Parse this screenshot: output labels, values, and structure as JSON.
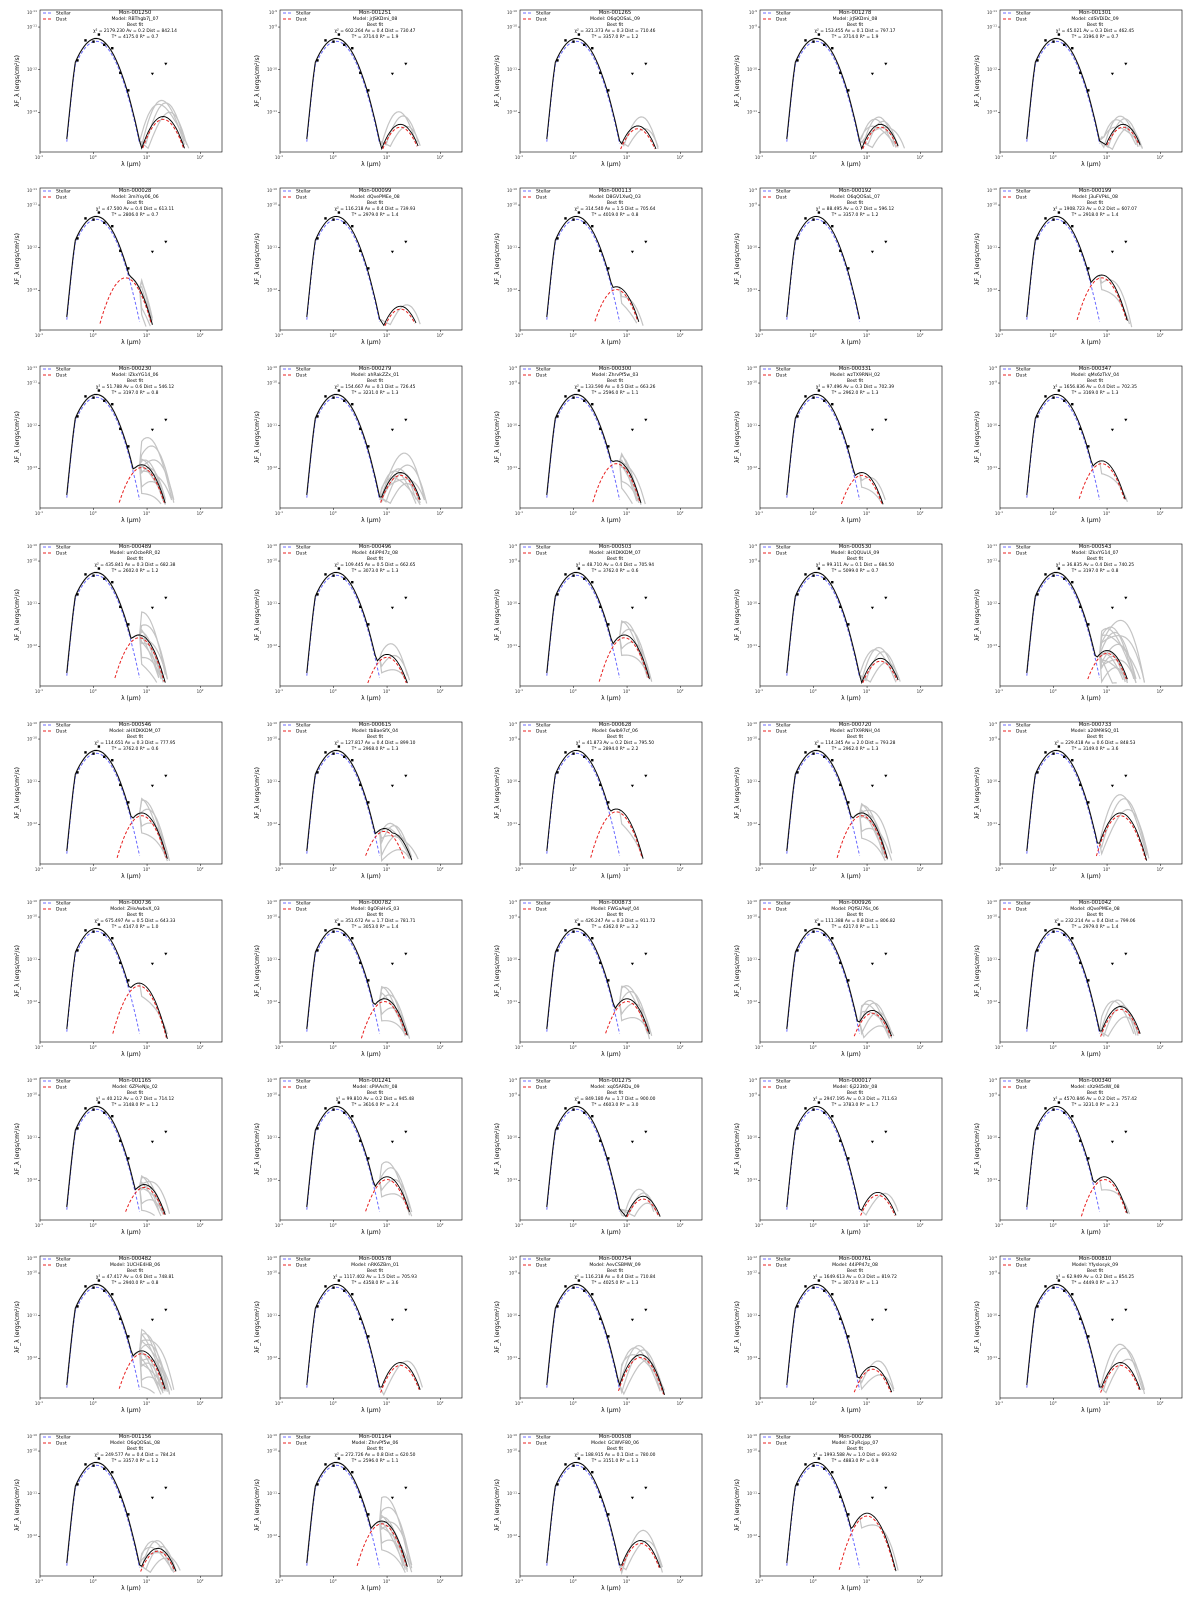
{
  "legend": {
    "stellar": "Stellar",
    "dust": "Dust"
  },
  "labels": {
    "best_fit": "Best fit",
    "model_prefix": "Model:",
    "xlabel": "λ (μm)",
    "ylabel": "λF_λ (ergs/cm²/s)"
  },
  "x_ticks": [
    "10^-1",
    "10^0",
    "10^1",
    "10^2"
  ],
  "colors": {
    "stellar": "#6b6bff",
    "dust": "#e8201f",
    "best": "#000000",
    "alt_models": "#c4c4c4",
    "fit_overlap": "#1c1c5e",
    "dust_overlap": "#8b0d0d"
  },
  "chart_data": [
    {
      "type": "line",
      "id": "Mon-001250",
      "model": "RBThgb7j_07",
      "chi2": "2179.230",
      "av": "0.2",
      "dist": "842.14",
      "teff": "4175.0",
      "rstar": "0.7",
      "ytick_top": "10^-11",
      "peak": 0.55,
      "dust": 0.2,
      "dustpk": 1.3,
      "alts": 4,
      "tail": "up"
    },
    {
      "type": "line",
      "id": "Mon-001251",
      "model": "jrJSKDmi_08",
      "chi2": "602.264",
      "av": "0.4",
      "dist": "730.47",
      "teff": "3714.0",
      "rstar": "1.9",
      "ytick_top": "10^-9",
      "peak": 0.62,
      "dust": 0.1,
      "dustpk": 1.25,
      "alts": 3,
      "tail": "flat"
    },
    {
      "type": "line",
      "id": "Mon-001265",
      "model": "O6qQOSaL_09",
      "chi2": "321.373",
      "av": "0.3",
      "dist": "710.46",
      "teff": "3357.0",
      "rstar": "1.2",
      "ytick_top": "10^-10",
      "peak": 0.6,
      "dust": 0.08,
      "dustpk": 1.2,
      "alts": 2,
      "tail": "flat"
    },
    {
      "type": "line",
      "id": "Mon-001278",
      "model": "jrJSKDmi_08",
      "chi2": "153.455",
      "av": "0.1",
      "dist": "797.17",
      "teff": "3714.0",
      "rstar": "1.9",
      "ytick_top": "10^-9",
      "peak": 0.6,
      "dust": 0.1,
      "dustpk": 1.25,
      "alts": 6,
      "tail": "flat"
    },
    {
      "type": "line",
      "id": "Mon-001301",
      "model": "cdSVDiDc_09",
      "chi2": "45.021",
      "av": "0.3",
      "dist": "462.45",
      "teff": "3196.0",
      "rstar": "0.7",
      "ytick_top": "10^-11",
      "peak": 0.6,
      "dust": 0.1,
      "dustpk": 1.3,
      "alts": 5,
      "tail": "flat"
    },
    {
      "type": "line",
      "id": "Mon-000028",
      "model": "3miYsy06_06",
      "chi2": "47.500",
      "av": "0.4",
      "dist": "613.11",
      "teff": "2806.0",
      "rstar": "0.7",
      "ytick_top": "10^-11",
      "peak": 0.55,
      "dust": 0.45,
      "dustpk": 0.6,
      "alts": 6,
      "tail": "down"
    },
    {
      "type": "line",
      "id": "Mon-000099",
      "model": "dQvePMEe_08",
      "chi2": "116.218",
      "av": "0.4",
      "dist": "739.93",
      "teff": "2979.0",
      "rstar": "1.4",
      "ytick_top": "10^-10",
      "peak": 0.58,
      "dust": 0.05,
      "dustpk": 1.25,
      "alts": 1,
      "tail": "flat"
    },
    {
      "type": "line",
      "id": "Mon-000113",
      "model": "D8GV1XwQ_03",
      "chi2": "314.540",
      "av": "1.5",
      "dist": "705.64",
      "teff": "4019.0",
      "rstar": "0.8",
      "ytick_top": "10^-10",
      "peak": 0.55,
      "dust": 0.3,
      "dustpk": 0.8,
      "alts": 2,
      "tail": "flat"
    },
    {
      "type": "line",
      "id": "Mon-000192",
      "model": "O6qQOSaL_07",
      "chi2": "88.495",
      "av": "0.7",
      "dist": "596.12",
      "teff": "3357.0",
      "rstar": "1.2",
      "ytick_top": "10^-9",
      "peak": 0.55,
      "dust": 0.0,
      "dustpk": 1.0,
      "alts": 1,
      "tail": "flat"
    },
    {
      "type": "line",
      "id": "Mon-000199",
      "model": "J3uFVPkL_08",
      "chi2": "1908.723",
      "av": "0.2",
      "dist": "607.07",
      "teff": "2918.0",
      "rstar": "1.4",
      "ytick_top": "10^-10",
      "peak": 0.6,
      "dust": 0.45,
      "dustpk": 0.9,
      "alts": 2,
      "tail": "flat"
    },
    {
      "type": "line",
      "id": "Mon-000230",
      "model": "lZkxYG14_06",
      "chi2": "51.788",
      "av": "0.6",
      "dist": "546.12",
      "teff": "3197.0",
      "rstar": "0.8",
      "ytick_top": "10^-11",
      "peak": 0.55,
      "dust": 0.3,
      "dustpk": 0.9,
      "alts": 10,
      "tail": "up"
    },
    {
      "type": "line",
      "id": "Mon-000279",
      "model": "ahRakZZx_01",
      "chi2": "154.667",
      "av": "0.1",
      "dist": "726.45",
      "teff": "3231.0",
      "rstar": "1.3",
      "ytick_top": "10^-10",
      "peak": 0.58,
      "dust": 0.2,
      "dustpk": 1.25,
      "alts": 8,
      "tail": "flat"
    },
    {
      "type": "line",
      "id": "Mon-000300",
      "model": "ZhrvPf5w_03",
      "chi2": "133.590",
      "av": "0.5",
      "dist": "663.26",
      "teff": "2596.0",
      "rstar": "1.1",
      "ytick_top": "10^-9",
      "peak": 0.55,
      "dust": 0.35,
      "dustpk": 0.8,
      "alts": 8,
      "tail": "down"
    },
    {
      "type": "line",
      "id": "Mon-000331",
      "model": "wzTX9RNH_02",
      "chi2": "97.496",
      "av": "0.3",
      "dist": "702.39",
      "teff": "2962.0",
      "rstar": "1.3",
      "ytick_top": "10^-10",
      "peak": 0.58,
      "dust": 0.2,
      "dustpk": 0.9,
      "alts": 2,
      "tail": "flat"
    },
    {
      "type": "line",
      "id": "Mon-000347",
      "model": "qMs6zTkV_04",
      "chi2": "1656.836",
      "av": "0.4",
      "dist": "702.35",
      "teff": "3169.0",
      "rstar": "1.3",
      "ytick_top": "10^-9",
      "peak": 0.55,
      "dust": 0.35,
      "dustpk": 0.9,
      "alts": 1,
      "tail": "flat"
    },
    {
      "type": "line",
      "id": "Mon-000489",
      "model": "umOcbeRR_02",
      "chi2": "435.841",
      "av": "0.3",
      "dist": "682.38",
      "teff": "2602.0",
      "rstar": "1.2",
      "ytick_top": "10^-10",
      "peak": 0.55,
      "dust": 0.4,
      "dustpk": 0.85,
      "alts": 10,
      "tail": "down"
    },
    {
      "type": "line",
      "id": "Mon-000496",
      "model": "44iPP47z_08",
      "chi2": "109.445",
      "av": "0.5",
      "dist": "662.65",
      "teff": "3073.0",
      "rstar": "1.3",
      "ytick_top": "10^-10",
      "peak": 0.62,
      "dust": 0.15,
      "dustpk": 1.0,
      "alts": 3,
      "tail": "flat"
    },
    {
      "type": "line",
      "id": "Mon-000503",
      "model": "aHXDKKDM_07",
      "chi2": "48.710",
      "av": "0.4",
      "dist": "705.94",
      "teff": "3762.0",
      "rstar": "0.6",
      "ytick_top": "10^-9",
      "peak": 0.5,
      "dust": 0.4,
      "dustpk": 0.95,
      "alts": 5,
      "tail": "flat"
    },
    {
      "type": "line",
      "id": "Mon-000530",
      "model": "8cQQUuUi_09",
      "chi2": "99.311",
      "av": "0.1",
      "dist": "684.50",
      "teff": "5099.0",
      "rstar": "0.7",
      "ytick_top": "10^-9",
      "peak": 0.6,
      "dust": 0.1,
      "dustpk": 1.25,
      "alts": 4,
      "tail": "flat"
    },
    {
      "type": "line",
      "id": "Mon-000543",
      "model": "lZkxYG14_07",
      "chi2": "36.835",
      "av": "0.4",
      "dist": "740.25",
      "teff": "3197.0",
      "rstar": "0.8",
      "ytick_top": "10^-11",
      "peak": 0.55,
      "dust": 0.2,
      "dustpk": 1.0,
      "alts": 14,
      "tail": "up"
    },
    {
      "type": "line",
      "id": "Mon-000546",
      "model": "aHXDKKDM_07",
      "chi2": "114.651",
      "av": "0.3",
      "dist": "777.95",
      "teff": "3762.0",
      "rstar": "0.6",
      "ytick_top": "10^-10",
      "peak": 0.5,
      "dust": 0.4,
      "dustpk": 0.9,
      "alts": 5,
      "tail": "flat"
    },
    {
      "type": "line",
      "id": "Mon-000615",
      "model": "tbBaeSfX_04",
      "chi2": "127.817",
      "av": "0.4",
      "dist": "899.10",
      "teff": "2968.0",
      "rstar": "1.3",
      "ytick_top": "10^-10",
      "peak": 0.55,
      "dust": 0.2,
      "dustpk": 0.95,
      "alts": 6,
      "tail": "steep"
    },
    {
      "type": "line",
      "id": "Mon-000628",
      "model": "6wlb97cf_06",
      "chi2": "41.873",
      "av": "0.2",
      "dist": "795.50",
      "teff": "2894.0",
      "rstar": "2.2",
      "ytick_top": "10^-9",
      "peak": 0.58,
      "dust": 0.45,
      "dustpk": 0.8,
      "alts": 1,
      "tail": "flat"
    },
    {
      "type": "line",
      "id": "Mon-000720",
      "model": "wzTX9RNH_04",
      "chi2": "114.345",
      "av": "2.0",
      "dist": "793.28",
      "teff": "2962.0",
      "rstar": "1.3",
      "ytick_top": "10^-10",
      "peak": 0.55,
      "dust": 0.4,
      "dustpk": 0.9,
      "alts": 8,
      "tail": "flat"
    },
    {
      "type": "line",
      "id": "Mon-000733",
      "model": "a20M9ISQ_01",
      "chi2": "229.418",
      "av": "0.6",
      "dist": "848.53",
      "teff": "3149.0",
      "rstar": "3.6",
      "ytick_top": "10^-9",
      "peak": 0.55,
      "dust": 0.4,
      "dustpk": 1.25,
      "alts": 3,
      "tail": "up"
    },
    {
      "type": "line",
      "id": "Mon-000736",
      "model": "ZHsAwbvX_03",
      "chi2": "675.497",
      "av": "0.5",
      "dist": "643.33",
      "teff": "4147.0",
      "rstar": "1.0",
      "ytick_top": "10^-10",
      "peak": 0.55,
      "dust": 0.5,
      "dustpk": 0.85,
      "alts": 1,
      "tail": "flat"
    },
    {
      "type": "line",
      "id": "Mon-000782",
      "model": "0gOFaHvS_03",
      "chi2": "351.672",
      "av": "1.7",
      "dist": "781.71",
      "teff": "3053.0",
      "rstar": "1.4",
      "ytick_top": "10^-10",
      "peak": 0.55,
      "dust": 0.3,
      "dustpk": 0.95,
      "alts": 6,
      "tail": "flat"
    },
    {
      "type": "line",
      "id": "Mon-000873",
      "model": "FWGaAwjf_04",
      "chi2": "426.247",
      "av": "0.3",
      "dist": "911.72",
      "teff": "4362.0",
      "rstar": "3.2",
      "ytick_top": "10^-9",
      "peak": 0.5,
      "dust": 0.3,
      "dustpk": 1.0,
      "alts": 5,
      "tail": "flat"
    },
    {
      "type": "line",
      "id": "Mon-000926",
      "model": "PQfSU76s_06",
      "chi2": "111.388",
      "av": "0.8",
      "dist": "806.82",
      "teff": "4217.0",
      "rstar": "1.1",
      "ytick_top": "10^-10",
      "peak": 0.55,
      "dust": 0.15,
      "dustpk": 1.1,
      "alts": 6,
      "tail": "flat"
    },
    {
      "type": "line",
      "id": "Mon-001042",
      "model": "dQvePMEe_08",
      "chi2": "232.214",
      "av": "0.4",
      "dist": "799.06",
      "teff": "2979.0",
      "rstar": "1.4",
      "ytick_top": "10^-10",
      "peak": 0.55,
      "dust": 0.2,
      "dustpk": 1.25,
      "alts": 4,
      "tail": "down"
    },
    {
      "type": "line",
      "id": "Mon-001165",
      "model": "6ZPieNJo_02",
      "chi2": "40.212",
      "av": "0.7",
      "dist": "714.12",
      "teff": "3148.0",
      "rstar": "1.2",
      "ytick_top": "10^-10",
      "peak": 0.55,
      "dust": 0.2,
      "dustpk": 0.95,
      "alts": 8,
      "tail": "down"
    },
    {
      "type": "line",
      "id": "Mon-001241",
      "model": "sPlAAsYr_08",
      "chi2": "99.810",
      "av": "0.2",
      "dist": "945.48",
      "teff": "3616.0",
      "rstar": "2.4",
      "ytick_top": "10^-10",
      "peak": 0.55,
      "dust": 0.3,
      "dustpk": 1.0,
      "alts": 4,
      "tail": "flat"
    },
    {
      "type": "line",
      "id": "Mon-001275",
      "model": "xq05ARDu_09",
      "chi2": "849.180",
      "av": "1.7",
      "dist": "900.00",
      "teff": "4603.0",
      "rstar": "3.0",
      "ytick_top": "10^-9",
      "peak": 0.55,
      "dust": 0.05,
      "dustpk": 1.3,
      "alts": 3,
      "tail": "down"
    },
    {
      "type": "line",
      "id": "Mon-000017",
      "model": "6j223t0r_08",
      "chi2": "2947.195",
      "av": "0.3",
      "dist": "711.63",
      "teff": "3783.0",
      "rstar": "1.7",
      "ytick_top": "10^-9",
      "peak": 0.6,
      "dust": 0.1,
      "dustpk": 1.2,
      "alts": 1,
      "tail": "flat"
    },
    {
      "type": "line",
      "id": "Mon-000340",
      "model": "sXz945dW_08",
      "chi2": "4570.846",
      "av": "0.2",
      "dist": "757.42",
      "teff": "3231.0",
      "rstar": "2.3",
      "ytick_top": "10^-9",
      "peak": 0.58,
      "dust": 0.3,
      "dustpk": 0.95,
      "alts": 1,
      "tail": "flat"
    },
    {
      "type": "line",
      "id": "Mon-000482",
      "model": "1UCHE4HB_06",
      "chi2": "47.417",
      "av": "0.6",
      "dist": "748.81",
      "teff": "2940.0",
      "rstar": "0.8",
      "ytick_top": "10^-10",
      "peak": 0.55,
      "dust": 0.35,
      "dustpk": 0.9,
      "alts": 14,
      "tail": "flat"
    },
    {
      "type": "line",
      "id": "Mon-000578",
      "model": "nRK6ZBm_01",
      "chi2": "1117.402",
      "av": "1.5",
      "dist": "705.93",
      "teff": "4358.0",
      "rstar": "3.6",
      "ytick_top": "10^-10",
      "peak": 0.6,
      "dust": 0.2,
      "dustpk": 1.25,
      "alts": 1,
      "tail": "flat"
    },
    {
      "type": "line",
      "id": "Mon-000754",
      "model": "AevCSBMW_09",
      "chi2": "116.218",
      "av": "0.4",
      "dist": "710.84",
      "teff": "4025.0",
      "rstar": "1.3",
      "ytick_top": "10^-9",
      "peak": 0.6,
      "dust": 0.3,
      "dustpk": 1.25,
      "alts": 5,
      "tail": "flat"
    },
    {
      "type": "line",
      "id": "Mon-000761",
      "model": "44iPP47z_08",
      "chi2": "1649.613",
      "av": "0.3",
      "dist": "819.72",
      "teff": "3073.0",
      "rstar": "1.3",
      "ytick_top": "10^-12",
      "peak": 0.55,
      "dust": 0.15,
      "dustpk": 1.1,
      "alts": 2,
      "tail": "flat"
    },
    {
      "type": "line",
      "id": "Mon-000810",
      "model": "Yfyslosyk_09",
      "chi2": "62.949",
      "av": "0.2",
      "dist": "854.25",
      "teff": "4449.0",
      "rstar": "3.7",
      "ytick_top": "10^-9",
      "peak": 0.58,
      "dust": 0.2,
      "dustpk": 1.25,
      "alts": 3,
      "tail": "up"
    },
    {
      "type": "line",
      "id": "Mon-001156",
      "model": "O6qQOSaL_08",
      "chi2": "249.577",
      "av": "0.4",
      "dist": "784.24",
      "teff": "3357.0",
      "rstar": "1.2",
      "ytick_top": "10^-10",
      "peak": 0.55,
      "dust": 0.1,
      "dustpk": 1.2,
      "alts": 6,
      "tail": "flat"
    },
    {
      "type": "line",
      "id": "Mon-001164",
      "model": "ZhrvPf5w_06",
      "chi2": "272.726",
      "av": "0.8",
      "dist": "620.50",
      "teff": "2596.0",
      "rstar": "1.1",
      "ytick_top": "10^-10",
      "peak": 0.6,
      "dust": 0.45,
      "dustpk": 0.9,
      "alts": 10,
      "tail": "flat"
    },
    {
      "type": "line",
      "id": "Mon-000508",
      "model": "GCWVF80_06",
      "chi2": "188.915",
      "av": "0.1",
      "dist": "780.00",
      "teff": "3151.0",
      "rstar": "1.3",
      "ytick_top": "10^-10",
      "peak": 0.58,
      "dust": 0.2,
      "dustpk": 1.25,
      "alts": 2,
      "tail": "flat"
    },
    {
      "type": "line",
      "id": "Mon-000286",
      "model": "X2yRcjpp_07",
      "chi2": "1993.588",
      "av": "1.0",
      "dist": "693.92",
      "teff": "4883.0",
      "rstar": "0.9",
      "ytick_top": "10^-10",
      "peak": 0.5,
      "dust": 0.55,
      "dustpk": 1.0,
      "alts": 1,
      "tail": "flat"
    }
  ]
}
